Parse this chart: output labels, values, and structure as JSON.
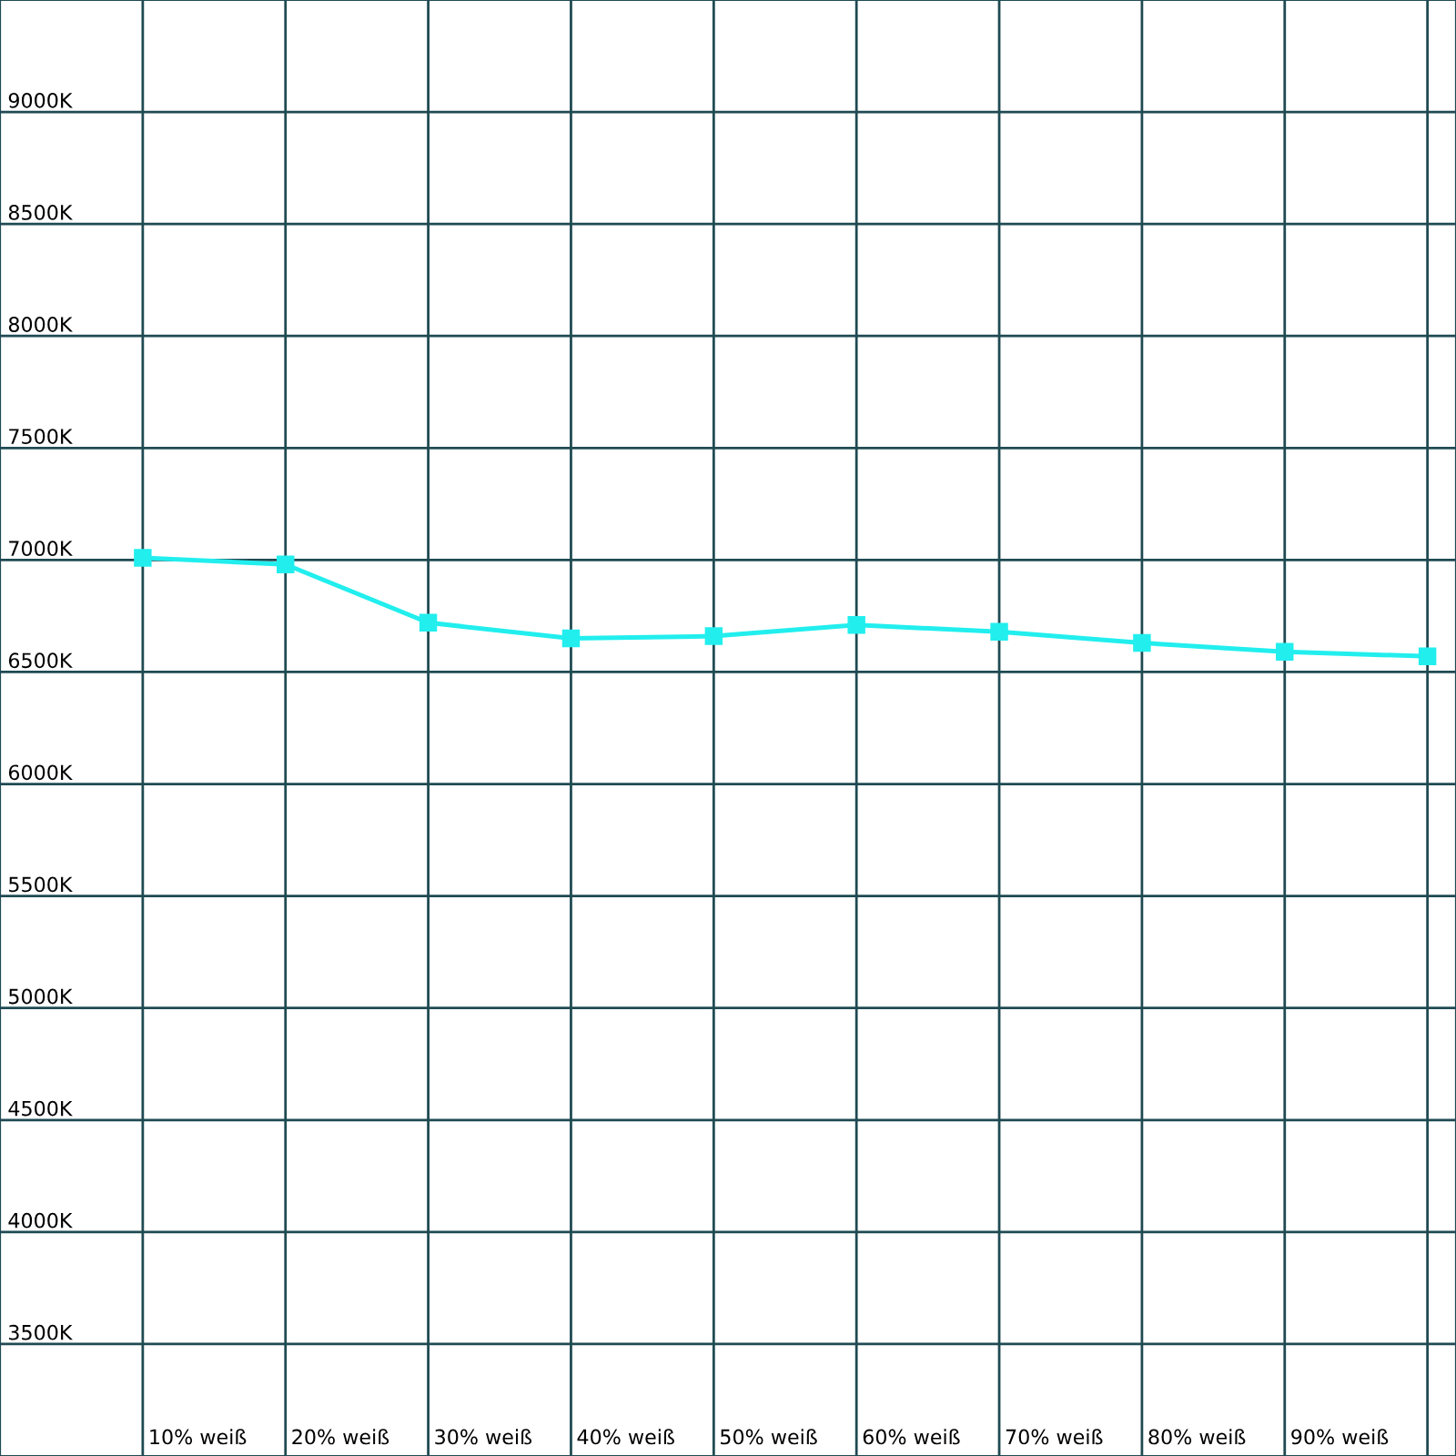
{
  "chart_data": {
    "type": "line",
    "categories": [
      "10% weiß",
      "20% weiß",
      "30% weiß",
      "40% weiß",
      "50% weiß",
      "60% weiß",
      "70% weiß",
      "80% weiß",
      "90% weiß",
      null
    ],
    "series": [
      {
        "color": "#22eeee",
        "values": [
          7010,
          6980,
          6720,
          6650,
          6660,
          6710,
          6680,
          6630,
          6590,
          6570
        ]
      }
    ],
    "ylim": [
      3000,
      9500
    ],
    "yticks": [
      {
        "value": 3500,
        "label": "3500K"
      },
      {
        "value": 4000,
        "label": "4000K"
      },
      {
        "value": 4500,
        "label": "4500K"
      },
      {
        "value": 5000,
        "label": "5000K"
      },
      {
        "value": 5500,
        "label": "5500K"
      },
      {
        "value": 6000,
        "label": "6000K"
      },
      {
        "value": 6500,
        "label": "6500K"
      },
      {
        "value": 7000,
        "label": "7000K"
      },
      {
        "value": 7500,
        "label": "7500K"
      },
      {
        "value": 8000,
        "label": "8000K"
      },
      {
        "value": 8500,
        "label": "8500K"
      },
      {
        "value": 9000,
        "label": "9000K"
      }
    ],
    "grid": true,
    "marker": "square",
    "line_style": "solid"
  }
}
